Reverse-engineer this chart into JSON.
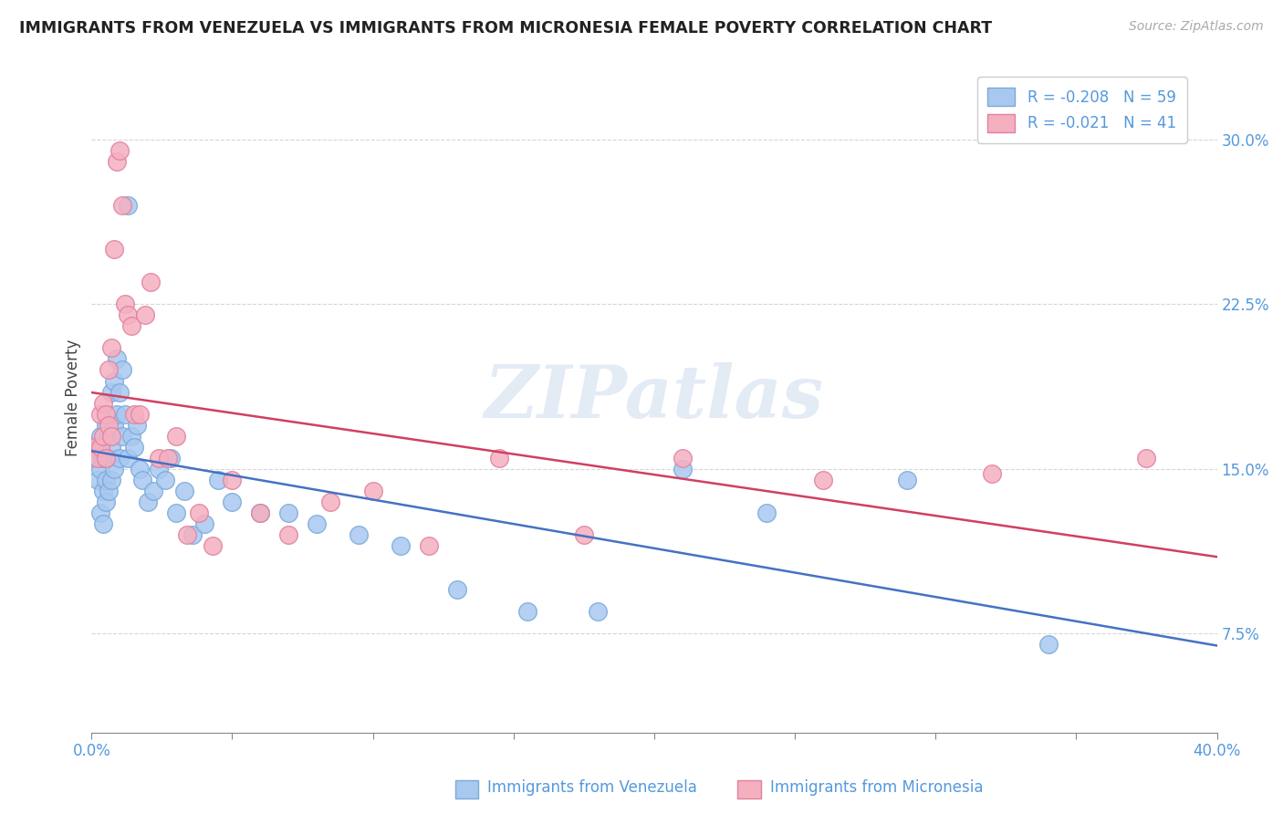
{
  "title": "IMMIGRANTS FROM VENEZUELA VS IMMIGRANTS FROM MICRONESIA FEMALE POVERTY CORRELATION CHART",
  "source": "Source: ZipAtlas.com",
  "ylabel": "Female Poverty",
  "yticks": [
    0.075,
    0.15,
    0.225,
    0.3
  ],
  "ytick_labels": [
    "7.5%",
    "15.0%",
    "22.5%",
    "30.0%"
  ],
  "xlim": [
    0.0,
    0.4
  ],
  "ylim": [
    0.03,
    0.335
  ],
  "venezuela_color": "#a8c8f0",
  "venezuela_edge": "#7aaad8",
  "micronesia_color": "#f5b0c0",
  "micronesia_edge": "#e080a0",
  "line_venezuela": "#4472c4",
  "line_micronesia": "#d04060",
  "legend_label_venezuela": "Immigrants from Venezuela",
  "legend_label_micronesia": "Immigrants from Micronesia",
  "R_venezuela": -0.208,
  "N_venezuela": 59,
  "R_micronesia": -0.021,
  "N_micronesia": 41,
  "watermark": "ZIPatlas",
  "venezuela_x": [
    0.001,
    0.002,
    0.002,
    0.003,
    0.003,
    0.003,
    0.004,
    0.004,
    0.004,
    0.005,
    0.005,
    0.005,
    0.005,
    0.006,
    0.006,
    0.006,
    0.007,
    0.007,
    0.007,
    0.008,
    0.008,
    0.008,
    0.009,
    0.009,
    0.01,
    0.01,
    0.011,
    0.011,
    0.012,
    0.013,
    0.013,
    0.014,
    0.015,
    0.016,
    0.017,
    0.018,
    0.02,
    0.022,
    0.024,
    0.026,
    0.028,
    0.03,
    0.033,
    0.036,
    0.04,
    0.045,
    0.05,
    0.06,
    0.07,
    0.08,
    0.095,
    0.11,
    0.13,
    0.155,
    0.18,
    0.21,
    0.24,
    0.29,
    0.34
  ],
  "venezuela_y": [
    0.155,
    0.145,
    0.16,
    0.15,
    0.13,
    0.165,
    0.155,
    0.14,
    0.125,
    0.17,
    0.155,
    0.145,
    0.135,
    0.165,
    0.155,
    0.14,
    0.185,
    0.16,
    0.145,
    0.19,
    0.17,
    0.15,
    0.2,
    0.175,
    0.185,
    0.155,
    0.195,
    0.165,
    0.175,
    0.27,
    0.155,
    0.165,
    0.16,
    0.17,
    0.15,
    0.145,
    0.135,
    0.14,
    0.15,
    0.145,
    0.155,
    0.13,
    0.14,
    0.12,
    0.125,
    0.145,
    0.135,
    0.13,
    0.13,
    0.125,
    0.12,
    0.115,
    0.095,
    0.085,
    0.085,
    0.15,
    0.13,
    0.145,
    0.07
  ],
  "micronesia_x": [
    0.001,
    0.002,
    0.003,
    0.003,
    0.004,
    0.004,
    0.005,
    0.005,
    0.006,
    0.006,
    0.007,
    0.007,
    0.008,
    0.009,
    0.01,
    0.011,
    0.012,
    0.013,
    0.014,
    0.015,
    0.017,
    0.019,
    0.021,
    0.024,
    0.027,
    0.03,
    0.034,
    0.038,
    0.043,
    0.05,
    0.06,
    0.07,
    0.085,
    0.1,
    0.12,
    0.145,
    0.175,
    0.21,
    0.26,
    0.32,
    0.375
  ],
  "micronesia_y": [
    0.16,
    0.155,
    0.175,
    0.16,
    0.165,
    0.18,
    0.175,
    0.155,
    0.195,
    0.17,
    0.205,
    0.165,
    0.25,
    0.29,
    0.295,
    0.27,
    0.225,
    0.22,
    0.215,
    0.175,
    0.175,
    0.22,
    0.235,
    0.155,
    0.155,
    0.165,
    0.12,
    0.13,
    0.115,
    0.145,
    0.13,
    0.12,
    0.135,
    0.14,
    0.115,
    0.155,
    0.12,
    0.155,
    0.145,
    0.148,
    0.155
  ]
}
